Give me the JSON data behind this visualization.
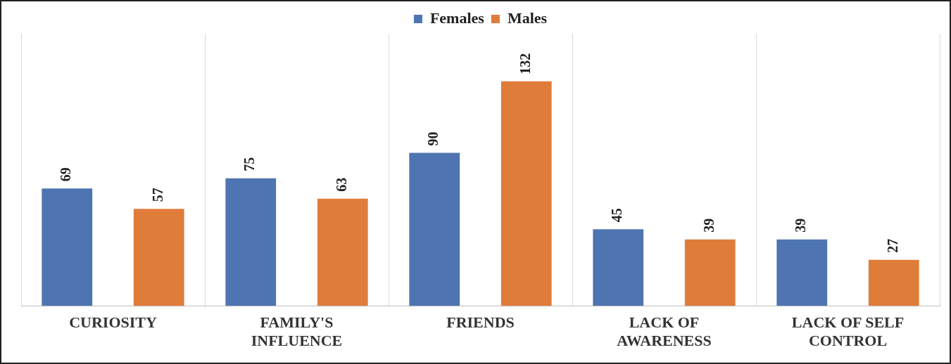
{
  "chart_data": {
    "type": "bar",
    "categories": [
      "CURIOSITY",
      "FAMILY'S INFLUENCE",
      "FRIENDS",
      "LACK OF AWARENESS",
      "LACK OF SELF CONTROL"
    ],
    "series": [
      {
        "name": "Females",
        "color": "#4e74b1",
        "values": [
          69,
          75,
          90,
          45,
          39
        ]
      },
      {
        "name": "Males",
        "color": "#e07c3a",
        "values": [
          57,
          63,
          132,
          39,
          27
        ]
      }
    ],
    "data_labels": true,
    "grid": "x",
    "legend": "top"
  }
}
